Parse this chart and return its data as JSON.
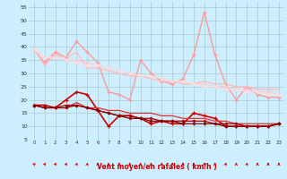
{
  "xlabel": "Vent moyen/en rafales ( km/h )",
  "x_values": [
    0,
    1,
    2,
    3,
    4,
    5,
    6,
    7,
    8,
    9,
    10,
    11,
    12,
    13,
    14,
    15,
    16,
    17,
    18,
    19,
    20,
    21,
    22,
    23
  ],
  "series": [
    {
      "y": [
        39,
        34,
        38,
        36,
        42,
        38,
        34,
        23,
        22,
        20,
        35,
        30,
        27,
        26,
        28,
        37,
        53,
        37,
        26,
        20,
        25,
        22,
        21,
        21
      ],
      "color": "#ff9999",
      "lw": 1.0,
      "marker": "+"
    },
    {
      "y": [
        39,
        33,
        37,
        36,
        38,
        32,
        32,
        31,
        30,
        29,
        29,
        28,
        27,
        27,
        26,
        26,
        27,
        26,
        26,
        25,
        25,
        24,
        24,
        24
      ],
      "color": "#ffbbbb",
      "lw": 1.0,
      "marker": null
    },
    {
      "y": [
        39,
        36,
        36,
        35,
        35,
        34,
        33,
        32,
        31,
        30,
        29,
        29,
        28,
        27,
        27,
        26,
        26,
        25,
        25,
        24,
        24,
        23,
        23,
        22
      ],
      "color": "#ffcccc",
      "lw": 0.8,
      "marker": "D"
    },
    {
      "y": [
        39,
        36,
        36,
        35,
        34,
        33,
        33,
        32,
        31,
        30,
        29,
        29,
        28,
        27,
        27,
        26,
        25,
        25,
        24,
        24,
        23,
        23,
        22,
        22
      ],
      "color": "#ffdddd",
      "lw": 0.8,
      "marker": "D"
    },
    {
      "y": [
        18,
        18,
        17,
        20,
        23,
        22,
        16,
        10,
        14,
        14,
        13,
        11,
        12,
        11,
        11,
        15,
        14,
        13,
        10,
        10,
        10,
        10,
        10,
        11
      ],
      "color": "#cc0000",
      "lw": 1.2,
      "marker": "+"
    },
    {
      "y": [
        18,
        17,
        17,
        17,
        19,
        17,
        17,
        16,
        16,
        15,
        15,
        15,
        14,
        14,
        13,
        13,
        13,
        12,
        12,
        11,
        11,
        11,
        11,
        11
      ],
      "color": "#dd3333",
      "lw": 0.9,
      "marker": null
    },
    {
      "y": [
        18,
        17,
        17,
        18,
        18,
        17,
        16,
        15,
        14,
        14,
        13,
        13,
        12,
        12,
        12,
        12,
        12,
        11,
        11,
        11,
        10,
        10,
        10,
        11
      ],
      "color": "#aa0000",
      "lw": 0.9,
      "marker": "D"
    },
    {
      "y": [
        18,
        17,
        17,
        17,
        18,
        17,
        16,
        15,
        14,
        13,
        13,
        12,
        12,
        12,
        11,
        11,
        11,
        11,
        10,
        10,
        10,
        10,
        10,
        11
      ],
      "color": "#880000",
      "lw": 0.9,
      "marker": "D"
    }
  ],
  "ylim": [
    5,
    57
  ],
  "yticks": [
    5,
    10,
    15,
    20,
    25,
    30,
    35,
    40,
    45,
    50,
    55
  ],
  "background_color": "#cceeff",
  "grid_color": "#aacccc",
  "arrow_angles_deg": [
    45,
    55,
    60,
    65,
    70,
    75,
    80,
    85,
    90,
    90,
    90,
    90,
    90,
    90,
    90,
    90,
    90,
    90,
    70,
    90,
    70,
    90,
    90,
    90
  ]
}
